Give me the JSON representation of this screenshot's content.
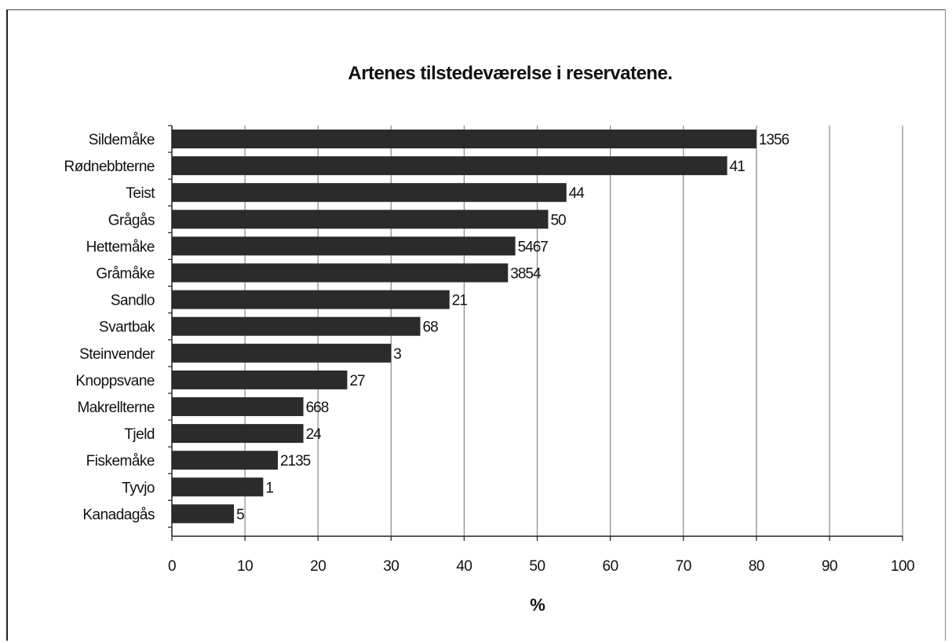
{
  "chart_data": {
    "type": "bar",
    "orientation": "horizontal",
    "title": "Artenes tilstedeværelse i reservatene.",
    "xlabel": "%",
    "ylabel": "",
    "xlim": [
      0,
      100
    ],
    "xticks": [
      0,
      10,
      20,
      30,
      40,
      50,
      60,
      70,
      80,
      90,
      100
    ],
    "grid": "vertical",
    "categories": [
      "Sildemåke",
      "Rødnebbterne",
      "Teist",
      "Grågås",
      "Hettemåke",
      "Gråmåke",
      "Sandlo",
      "Svartbak",
      "Steinvender",
      "Knoppsvane",
      "Makrellterne",
      "Tjeld",
      "Fiskemåke",
      "Tyvjo",
      "Kanadagås"
    ],
    "values": [
      80,
      76,
      54,
      51.5,
      47,
      46,
      38,
      34,
      30,
      24,
      18,
      18,
      14.5,
      12.5,
      8.5
    ],
    "data_labels": [
      "1356",
      "41",
      "44",
      "50",
      "5467",
      "3854",
      "21",
      "68",
      "3",
      "27",
      "668",
      "24",
      "2135",
      "1",
      "5"
    ],
    "colors": {
      "bar": "#2b2b2b",
      "grid": "#888888",
      "axis": "#222222"
    }
  }
}
